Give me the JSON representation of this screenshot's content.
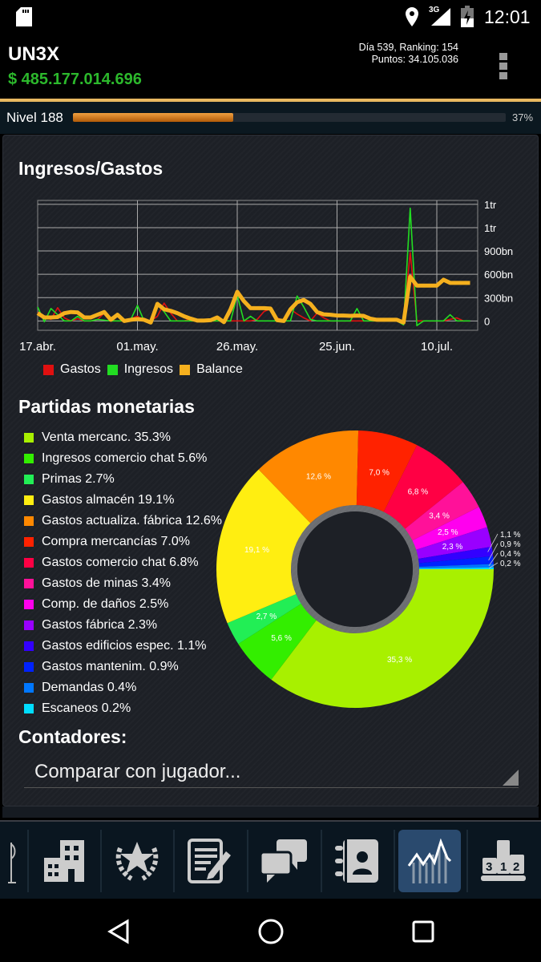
{
  "status_bar": {
    "time": "12:01",
    "network": "3G",
    "icons": [
      "sd-card-icon",
      "location-icon",
      "signal-icon",
      "battery-charging-icon"
    ]
  },
  "header": {
    "player": "UN3X",
    "money": "$ 485.177.014.696",
    "day_ranking": "Día 539, Ranking: 154",
    "points": "Puntos: 34.105.036",
    "menu_icon": "overflow-menu-icon"
  },
  "level": {
    "label": "Nivel 188",
    "percent_label": "37%",
    "progress": 37
  },
  "income_chart": {
    "title": "Ingresos/Gastos"
  },
  "chart_data": [
    {
      "type": "line",
      "title": "Ingresos/Gastos",
      "x_tick_labels": [
        {
          "index": 0,
          "label": "17.abr."
        },
        {
          "index": 15,
          "label": "01.may."
        },
        {
          "index": 30,
          "label": "26.may."
        },
        {
          "index": 45,
          "label": "25.jun."
        },
        {
          "index": 60,
          "label": "10.jul."
        }
      ],
      "y_tick_labels": [
        {
          "value": 0,
          "label": "0"
        },
        {
          "value": 300,
          "label": "300bn"
        },
        {
          "value": 600,
          "label": "600bn"
        },
        {
          "value": 900,
          "label": "900bn"
        },
        {
          "value": 1200,
          "label": "1tr"
        },
        {
          "value": 1500,
          "label": "1tr"
        }
      ],
      "y_unit": "bn",
      "ylim": [
        -120,
        1550
      ],
      "grid": true,
      "legend_placement": "bottom-left",
      "series": [
        {
          "name": "Gastos",
          "color": "#e01010",
          "values": [
            110,
            50,
            20,
            170,
            40,
            0,
            30,
            0,
            0,
            20,
            100,
            10,
            0,
            0,
            30,
            60,
            0,
            0,
            60,
            230,
            100,
            0,
            0,
            30,
            10,
            0,
            0,
            0,
            0,
            0,
            0,
            0,
            0,
            20,
            120,
            160,
            40,
            0,
            150,
            90,
            40,
            0,
            100,
            40,
            0,
            0,
            0,
            0,
            0,
            0,
            0,
            0,
            0,
            0,
            0,
            0,
            880,
            0,
            0,
            0,
            0,
            0,
            20,
            40,
            0,
            0
          ]
        },
        {
          "name": "Ingresos",
          "color": "#22dd22",
          "values": [
            180,
            -10,
            160,
            80,
            0,
            0,
            60,
            0,
            0,
            20,
            10,
            0,
            0,
            0,
            20,
            200,
            0,
            0,
            220,
            120,
            0,
            0,
            0,
            0,
            0,
            0,
            0,
            0,
            0,
            0,
            330,
            0,
            60,
            0,
            0,
            0,
            0,
            0,
            0,
            320,
            180,
            20,
            0,
            0,
            0,
            0,
            0,
            0,
            160,
            0,
            0,
            0,
            0,
            0,
            0,
            -50,
            1450,
            -60,
            0,
            0,
            0,
            0,
            80,
            0,
            0,
            0
          ]
        },
        {
          "name": "Balance",
          "color": "#f5b01e",
          "values": [
            100,
            45,
            45,
            50,
            100,
            115,
            110,
            45,
            45,
            80,
            115,
            15,
            80,
            0,
            15,
            25,
            15,
            -20,
            220,
            150,
            130,
            100,
            60,
            30,
            5,
            5,
            10,
            45,
            -15,
            150,
            375,
            255,
            165,
            165,
            165,
            160,
            10,
            0,
            150,
            240,
            270,
            220,
            115,
            85,
            80,
            70,
            70,
            65,
            70,
            65,
            30,
            15,
            15,
            15,
            15,
            -20,
            570,
            455,
            455,
            455,
            455,
            530,
            490,
            490,
            490,
            490
          ]
        }
      ]
    },
    {
      "type": "pie",
      "title": "Partidas monetarias",
      "donut": true,
      "slices": [
        {
          "label": "Venta mercanc. 35.3%",
          "value": 35.3,
          "slice_label": "35,3 %",
          "color": "#a8f000"
        },
        {
          "label": "Ingresos comercio chat 5.6%",
          "value": 5.6,
          "slice_label": "5,6 %",
          "color": "#33ee00"
        },
        {
          "label": "Primas 2.7%",
          "value": 2.7,
          "slice_label": "2,7 %",
          "color": "#22ee55"
        },
        {
          "label": "Gastos almacén 19.1%",
          "value": 19.1,
          "slice_label": "19,1 %",
          "color": "#ffee11"
        },
        {
          "label": "Gastos actualiza. fábrica 12.6%",
          "value": 12.6,
          "slice_label": "12,6 %",
          "color": "#ff8800"
        },
        {
          "label": "Compra mercancías 7.0%",
          "value": 7.0,
          "slice_label": "7,0 %",
          "color": "#ff2200"
        },
        {
          "label": "Gastos comercio chat 6.8%",
          "value": 6.8,
          "slice_label": "6,8 %",
          "color": "#ff0044"
        },
        {
          "label": "Gastos de minas 3.4%",
          "value": 3.4,
          "slice_label": "3,4 %",
          "color": "#ff1199"
        },
        {
          "label": "Comp. de daños 2.5%",
          "value": 2.5,
          "slice_label": "2,5 %",
          "color": "#ff00ee"
        },
        {
          "label": "Gastos fábrica 2.3%",
          "value": 2.3,
          "slice_label": "2,3 %",
          "color": "#9900ff"
        },
        {
          "label": "Gastos edificios espec. 1.1%",
          "value": 1.1,
          "slice_label": "1,1 %",
          "color": "#3300ff"
        },
        {
          "label": "Gastos mantenim. 0.9%",
          "value": 0.9,
          "slice_label": "0,9 %",
          "color": "#0022ff"
        },
        {
          "label": "Demandas 0.4%",
          "value": 0.4,
          "slice_label": "0,4 %",
          "color": "#0077ff"
        },
        {
          "label": "Escaneos 0.2%",
          "value": 0.2,
          "slice_label": "0,2 %",
          "color": "#00ddff"
        }
      ]
    }
  ],
  "pie_section": {
    "title": "Partidas monetarias"
  },
  "counters": {
    "title": "Contadores:",
    "dropdown_value": "Comparar con jugador..."
  },
  "bottom_nav": {
    "items": [
      "flag-icon",
      "buildings-icon",
      "laurel-star-icon",
      "notes-edit-icon",
      "chat-icon",
      "contacts-book-icon",
      "statistics-chart-icon",
      "ranking-podium-icon"
    ],
    "active": "statistics-chart-icon"
  },
  "system_nav": [
    "back-icon",
    "home-icon",
    "recents-icon"
  ]
}
